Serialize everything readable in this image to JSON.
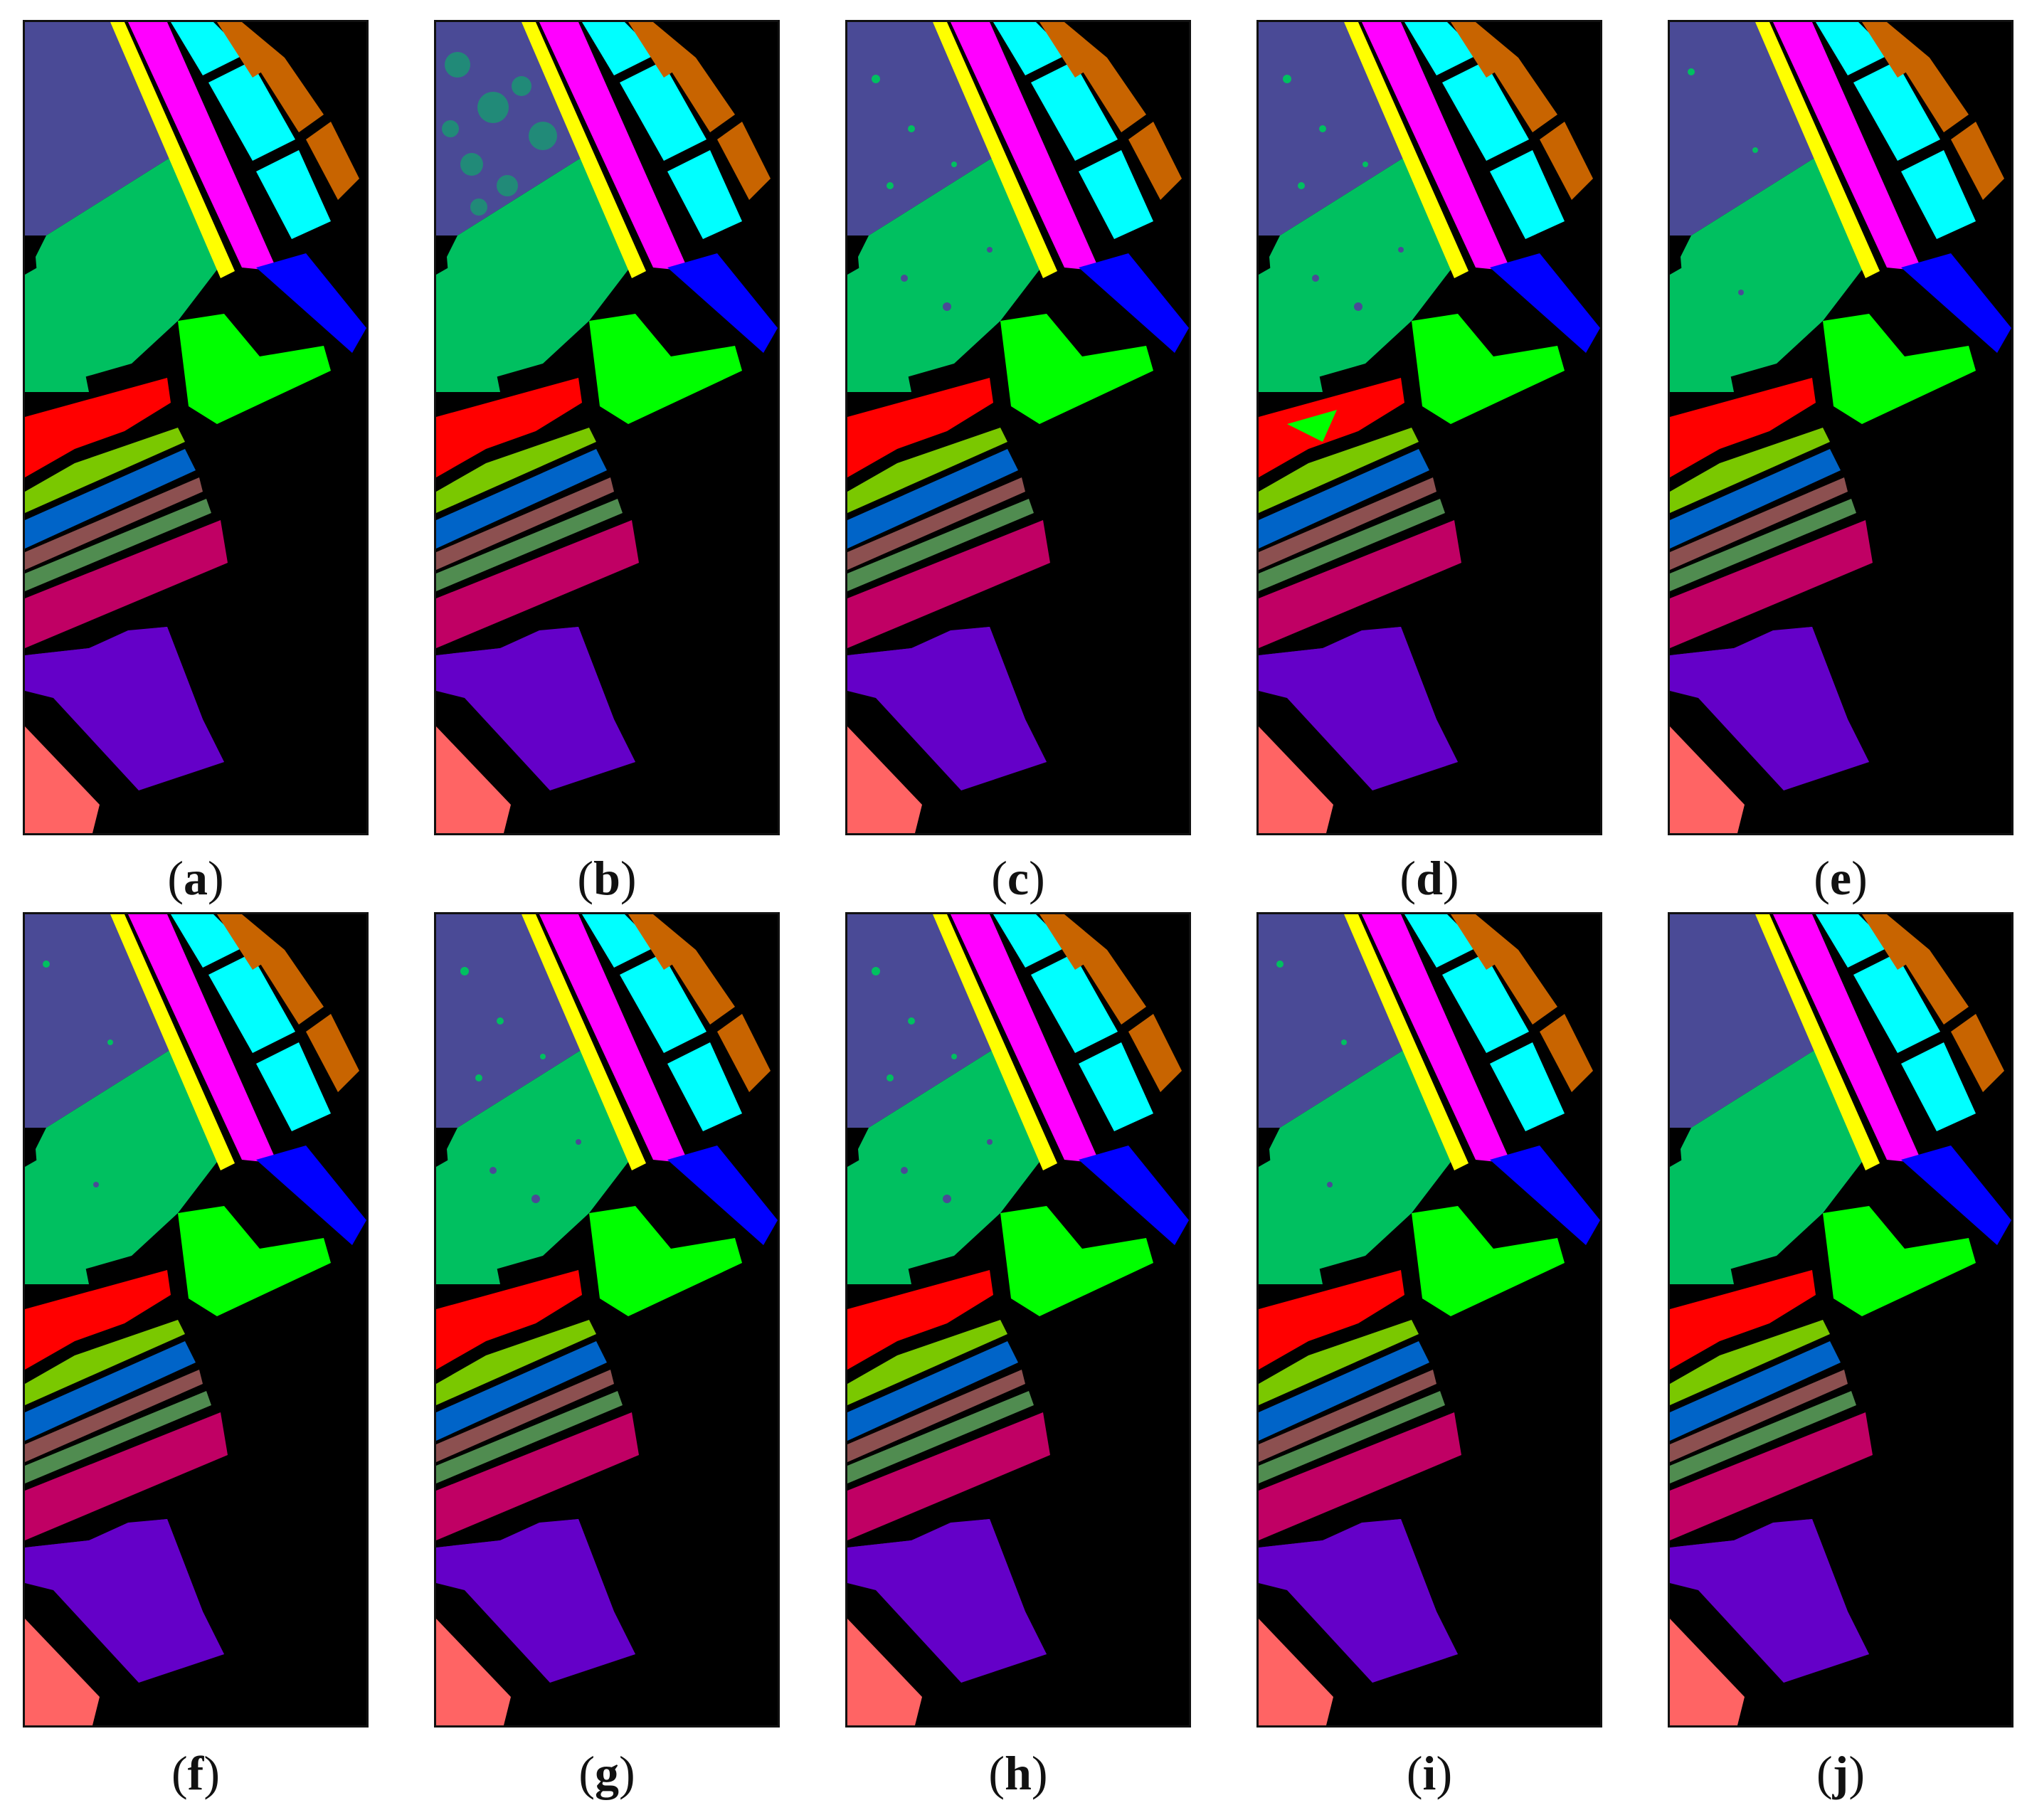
{
  "panels": [
    {
      "label": "a"
    },
    {
      "label": "b"
    },
    {
      "label": "c"
    },
    {
      "label": "d"
    },
    {
      "label": "e"
    },
    {
      "label": "f"
    },
    {
      "label": "g"
    },
    {
      "label": "h"
    },
    {
      "label": "i"
    },
    {
      "label": "j"
    }
  ],
  "class_colors": {
    "blue_gray": "#4a4a96",
    "green": "#00c060",
    "magenta": "#ff00ff",
    "cyan": "#00ffff",
    "orange": "#c86400",
    "yellow": "#ffff00",
    "blue": "#0000ff",
    "lime": "#00ff00",
    "red": "#ff0000",
    "yellow_green": "#7ac800",
    "mid_blue": "#0064c8",
    "brown": "#8c5050",
    "gray_green": "#508c50",
    "crimson": "#c00064",
    "purple": "#6400c8",
    "salmon": "#ff6464",
    "background": "#000000"
  }
}
